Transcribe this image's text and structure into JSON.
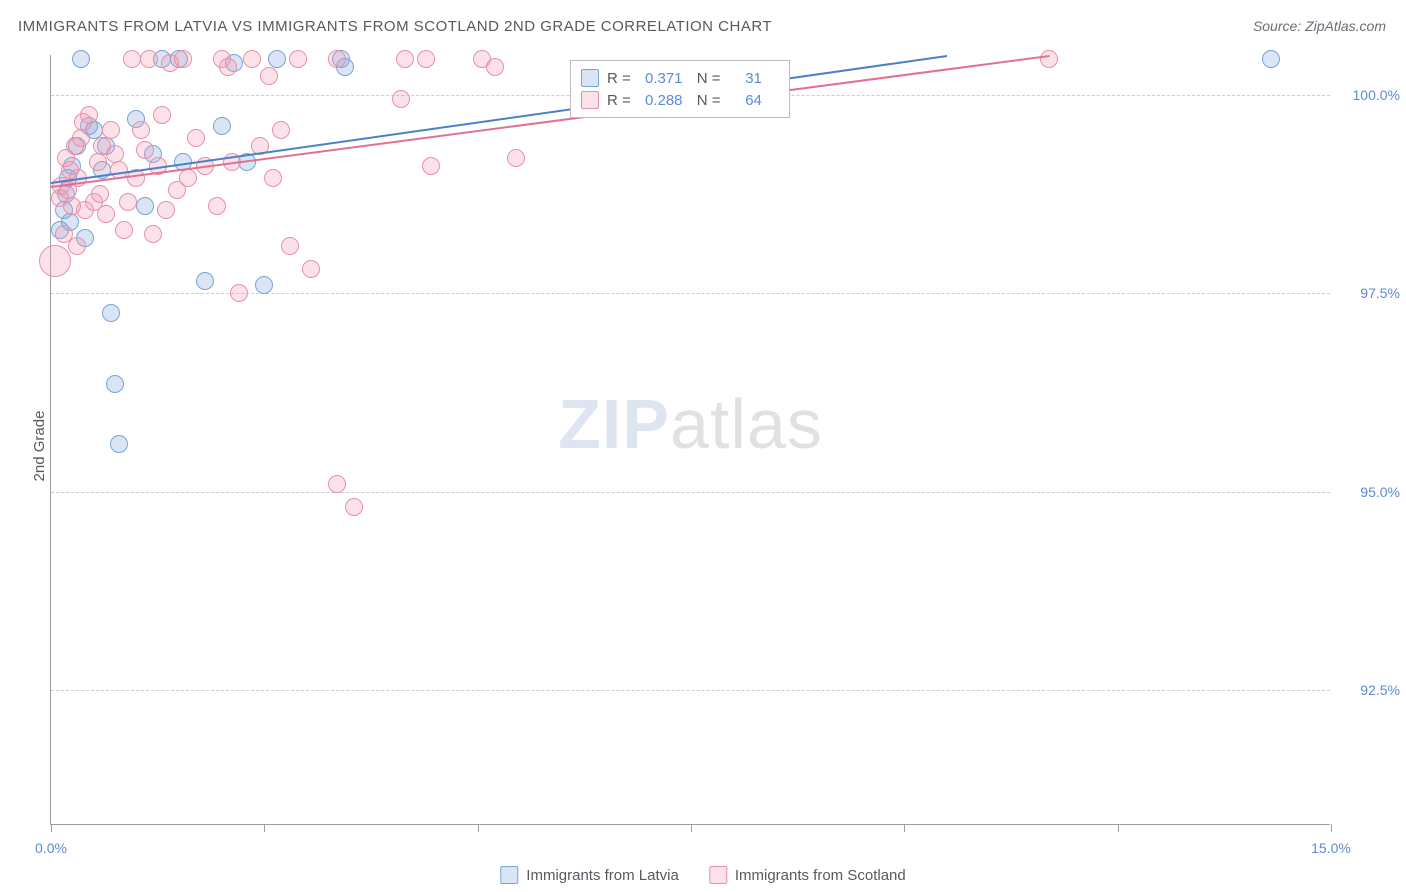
{
  "title": "IMMIGRANTS FROM LATVIA VS IMMIGRANTS FROM SCOTLAND 2ND GRADE CORRELATION CHART",
  "source": "Source: ZipAtlas.com",
  "y_axis_label": "2nd Grade",
  "watermark": {
    "zip": "ZIP",
    "atlas": "atlas"
  },
  "chart": {
    "type": "scatter",
    "background_color": "#ffffff",
    "grid_color": "#c9ccd1",
    "axis_color": "#9aa0a8",
    "xlim": [
      0.0,
      15.0
    ],
    "ylim": [
      90.8,
      100.5
    ],
    "x_ticks": [
      0.0,
      7.5,
      15.0
    ],
    "x_tick_labels": [
      "0.0%",
      "",
      "15.0%"
    ],
    "x_minor_ticks": [
      2.5,
      5.0,
      10.0,
      12.5
    ],
    "y_gridlines": [
      92.5,
      95.0,
      97.5,
      100.0
    ],
    "y_tick_labels": [
      "92.5%",
      "95.0%",
      "97.5%",
      "100.0%"
    ],
    "series": [
      {
        "name": "Immigrants from Latvia",
        "fill": "rgba(120,160,220,0.28)",
        "stroke": "#7aa3d9",
        "trend_color": "#4a7fc9",
        "trend": {
          "x1": 0.0,
          "y1": 98.9,
          "x2": 10.5,
          "y2": 100.5
        },
        "R": "0.371",
        "N": "31",
        "marker_radius": 9,
        "points": [
          [
            0.1,
            98.3
          ],
          [
            0.15,
            98.55
          ],
          [
            0.18,
            98.75
          ],
          [
            0.2,
            98.95
          ],
          [
            0.22,
            98.4
          ],
          [
            0.25,
            99.1
          ],
          [
            0.3,
            99.35
          ],
          [
            0.35,
            100.45
          ],
          [
            0.4,
            98.2
          ],
          [
            0.45,
            99.6
          ],
          [
            0.5,
            99.55
          ],
          [
            0.6,
            99.05
          ],
          [
            0.65,
            99.35
          ],
          [
            0.7,
            97.25
          ],
          [
            0.75,
            96.35
          ],
          [
            0.8,
            95.6
          ],
          [
            1.0,
            99.7
          ],
          [
            1.1,
            98.6
          ],
          [
            1.2,
            99.25
          ],
          [
            1.3,
            100.45
          ],
          [
            1.5,
            100.45
          ],
          [
            1.55,
            99.15
          ],
          [
            1.8,
            97.65
          ],
          [
            2.0,
            99.6
          ],
          [
            2.15,
            100.4
          ],
          [
            2.3,
            99.15
          ],
          [
            2.5,
            97.6
          ],
          [
            2.65,
            100.45
          ],
          [
            3.4,
            100.45
          ],
          [
            3.45,
            100.35
          ],
          [
            14.3,
            100.45
          ]
        ]
      },
      {
        "name": "Immigrants from Scotland",
        "fill": "rgba(240,150,175,0.28)",
        "stroke": "#e98fa9",
        "trend_color": "#e36f91",
        "trend": {
          "x1": 0.0,
          "y1": 98.85,
          "x2": 11.7,
          "y2": 100.5
        },
        "R": "0.288",
        "N": "64",
        "marker_radius": 9,
        "points": [
          [
            0.05,
            97.9,
            16
          ],
          [
            0.1,
            98.7
          ],
          [
            0.12,
            98.85
          ],
          [
            0.15,
            98.25
          ],
          [
            0.18,
            99.2
          ],
          [
            0.2,
            98.8
          ],
          [
            0.22,
            99.05
          ],
          [
            0.25,
            98.6
          ],
          [
            0.28,
            99.35
          ],
          [
            0.3,
            98.1
          ],
          [
            0.32,
            98.95
          ],
          [
            0.35,
            99.45
          ],
          [
            0.38,
            99.65
          ],
          [
            0.4,
            98.55
          ],
          [
            0.45,
            99.75
          ],
          [
            0.5,
            98.65
          ],
          [
            0.55,
            99.15
          ],
          [
            0.58,
            98.75
          ],
          [
            0.6,
            99.35
          ],
          [
            0.65,
            98.5
          ],
          [
            0.7,
            99.55
          ],
          [
            0.75,
            99.25
          ],
          [
            0.8,
            99.05
          ],
          [
            0.85,
            98.3
          ],
          [
            0.9,
            98.65
          ],
          [
            0.95,
            100.45
          ],
          [
            1.0,
            98.95
          ],
          [
            1.05,
            99.55
          ],
          [
            1.1,
            99.3
          ],
          [
            1.15,
            100.45
          ],
          [
            1.2,
            98.25
          ],
          [
            1.25,
            99.1
          ],
          [
            1.3,
            99.75
          ],
          [
            1.35,
            98.55
          ],
          [
            1.4,
            100.4
          ],
          [
            1.48,
            98.8
          ],
          [
            1.55,
            100.45
          ],
          [
            1.6,
            98.95
          ],
          [
            1.7,
            99.45
          ],
          [
            1.8,
            99.1
          ],
          [
            1.95,
            98.6
          ],
          [
            2.0,
            100.45
          ],
          [
            2.07,
            100.35
          ],
          [
            2.12,
            99.15
          ],
          [
            2.2,
            97.5
          ],
          [
            2.35,
            100.45
          ],
          [
            2.45,
            99.35
          ],
          [
            2.55,
            100.24
          ],
          [
            2.6,
            98.95
          ],
          [
            2.7,
            99.55
          ],
          [
            2.8,
            98.1
          ],
          [
            2.9,
            100.45
          ],
          [
            3.05,
            97.8
          ],
          [
            3.35,
            100.45
          ],
          [
            3.35,
            95.1
          ],
          [
            3.55,
            94.8
          ],
          [
            4.1,
            99.95
          ],
          [
            4.15,
            100.45
          ],
          [
            4.4,
            100.45
          ],
          [
            4.45,
            99.1
          ],
          [
            5.05,
            100.45
          ],
          [
            5.2,
            100.35
          ],
          [
            5.45,
            99.2
          ],
          [
            11.7,
            100.45
          ]
        ]
      }
    ]
  },
  "stats_box": {
    "rows": [
      {
        "series_idx": 0,
        "r_label": "R =",
        "n_label": "N ="
      },
      {
        "series_idx": 1,
        "r_label": "R =",
        "n_label": "N ="
      }
    ]
  }
}
